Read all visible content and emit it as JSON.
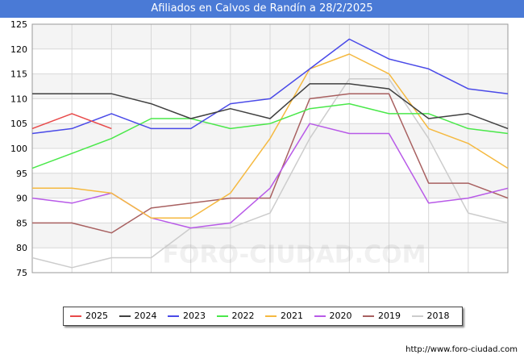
{
  "header": {
    "title": "Afiliados en Calvos de Randín a 28/2/2025"
  },
  "footer": {
    "url": "http://www.foro-ciudad.com"
  },
  "watermark": "FORO-CIUDAD.COM",
  "chart_data": {
    "type": "line",
    "title": "Afiliados en Calvos de Randín a 28/2/2025",
    "x_categories": [
      "",
      "ENE",
      "FEB",
      "MAR",
      "ABR",
      "MAY",
      "JUN",
      "JUL",
      "AGO",
      "SEP",
      "OCT",
      "NOV",
      "DIC"
    ],
    "ylim": [
      75,
      125
    ],
    "yticks": [
      75,
      80,
      85,
      90,
      95,
      100,
      105,
      110,
      115,
      120,
      125
    ],
    "grid": true,
    "legend_position": "bottom",
    "series": [
      {
        "name": "2025",
        "color": "#e84a4a",
        "values": [
          104,
          107,
          104
        ]
      },
      {
        "name": "2024",
        "color": "#404040",
        "values": [
          111,
          111,
          111,
          109,
          106,
          108,
          106,
          113,
          113,
          112,
          106,
          107,
          104
        ]
      },
      {
        "name": "2023",
        "color": "#4a4ae8",
        "values": [
          103,
          104,
          107,
          104,
          104,
          109,
          110,
          116,
          122,
          118,
          116,
          112,
          111
        ]
      },
      {
        "name": "2022",
        "color": "#4ae84a",
        "values": [
          96,
          99,
          102,
          106,
          106,
          104,
          105,
          108,
          109,
          107,
          107,
          104,
          103
        ]
      },
      {
        "name": "2021",
        "color": "#f5b940",
        "values": [
          92,
          92,
          91,
          86,
          86,
          91,
          102,
          116,
          119,
          115,
          104,
          101,
          96
        ]
      },
      {
        "name": "2020",
        "color": "#b85ae8",
        "values": [
          90,
          89,
          91,
          86,
          84,
          85,
          92,
          105,
          103,
          103,
          89,
          90,
          92
        ]
      },
      {
        "name": "2019",
        "color": "#a86060",
        "values": [
          85,
          85,
          83,
          88,
          89,
          90,
          90,
          110,
          111,
          111,
          93,
          93,
          90
        ]
      },
      {
        "name": "2018",
        "color": "#cccccc",
        "values": [
          78,
          76,
          78,
          78,
          84,
          84,
          87,
          102,
          114,
          114,
          102,
          87,
          85
        ]
      }
    ]
  }
}
